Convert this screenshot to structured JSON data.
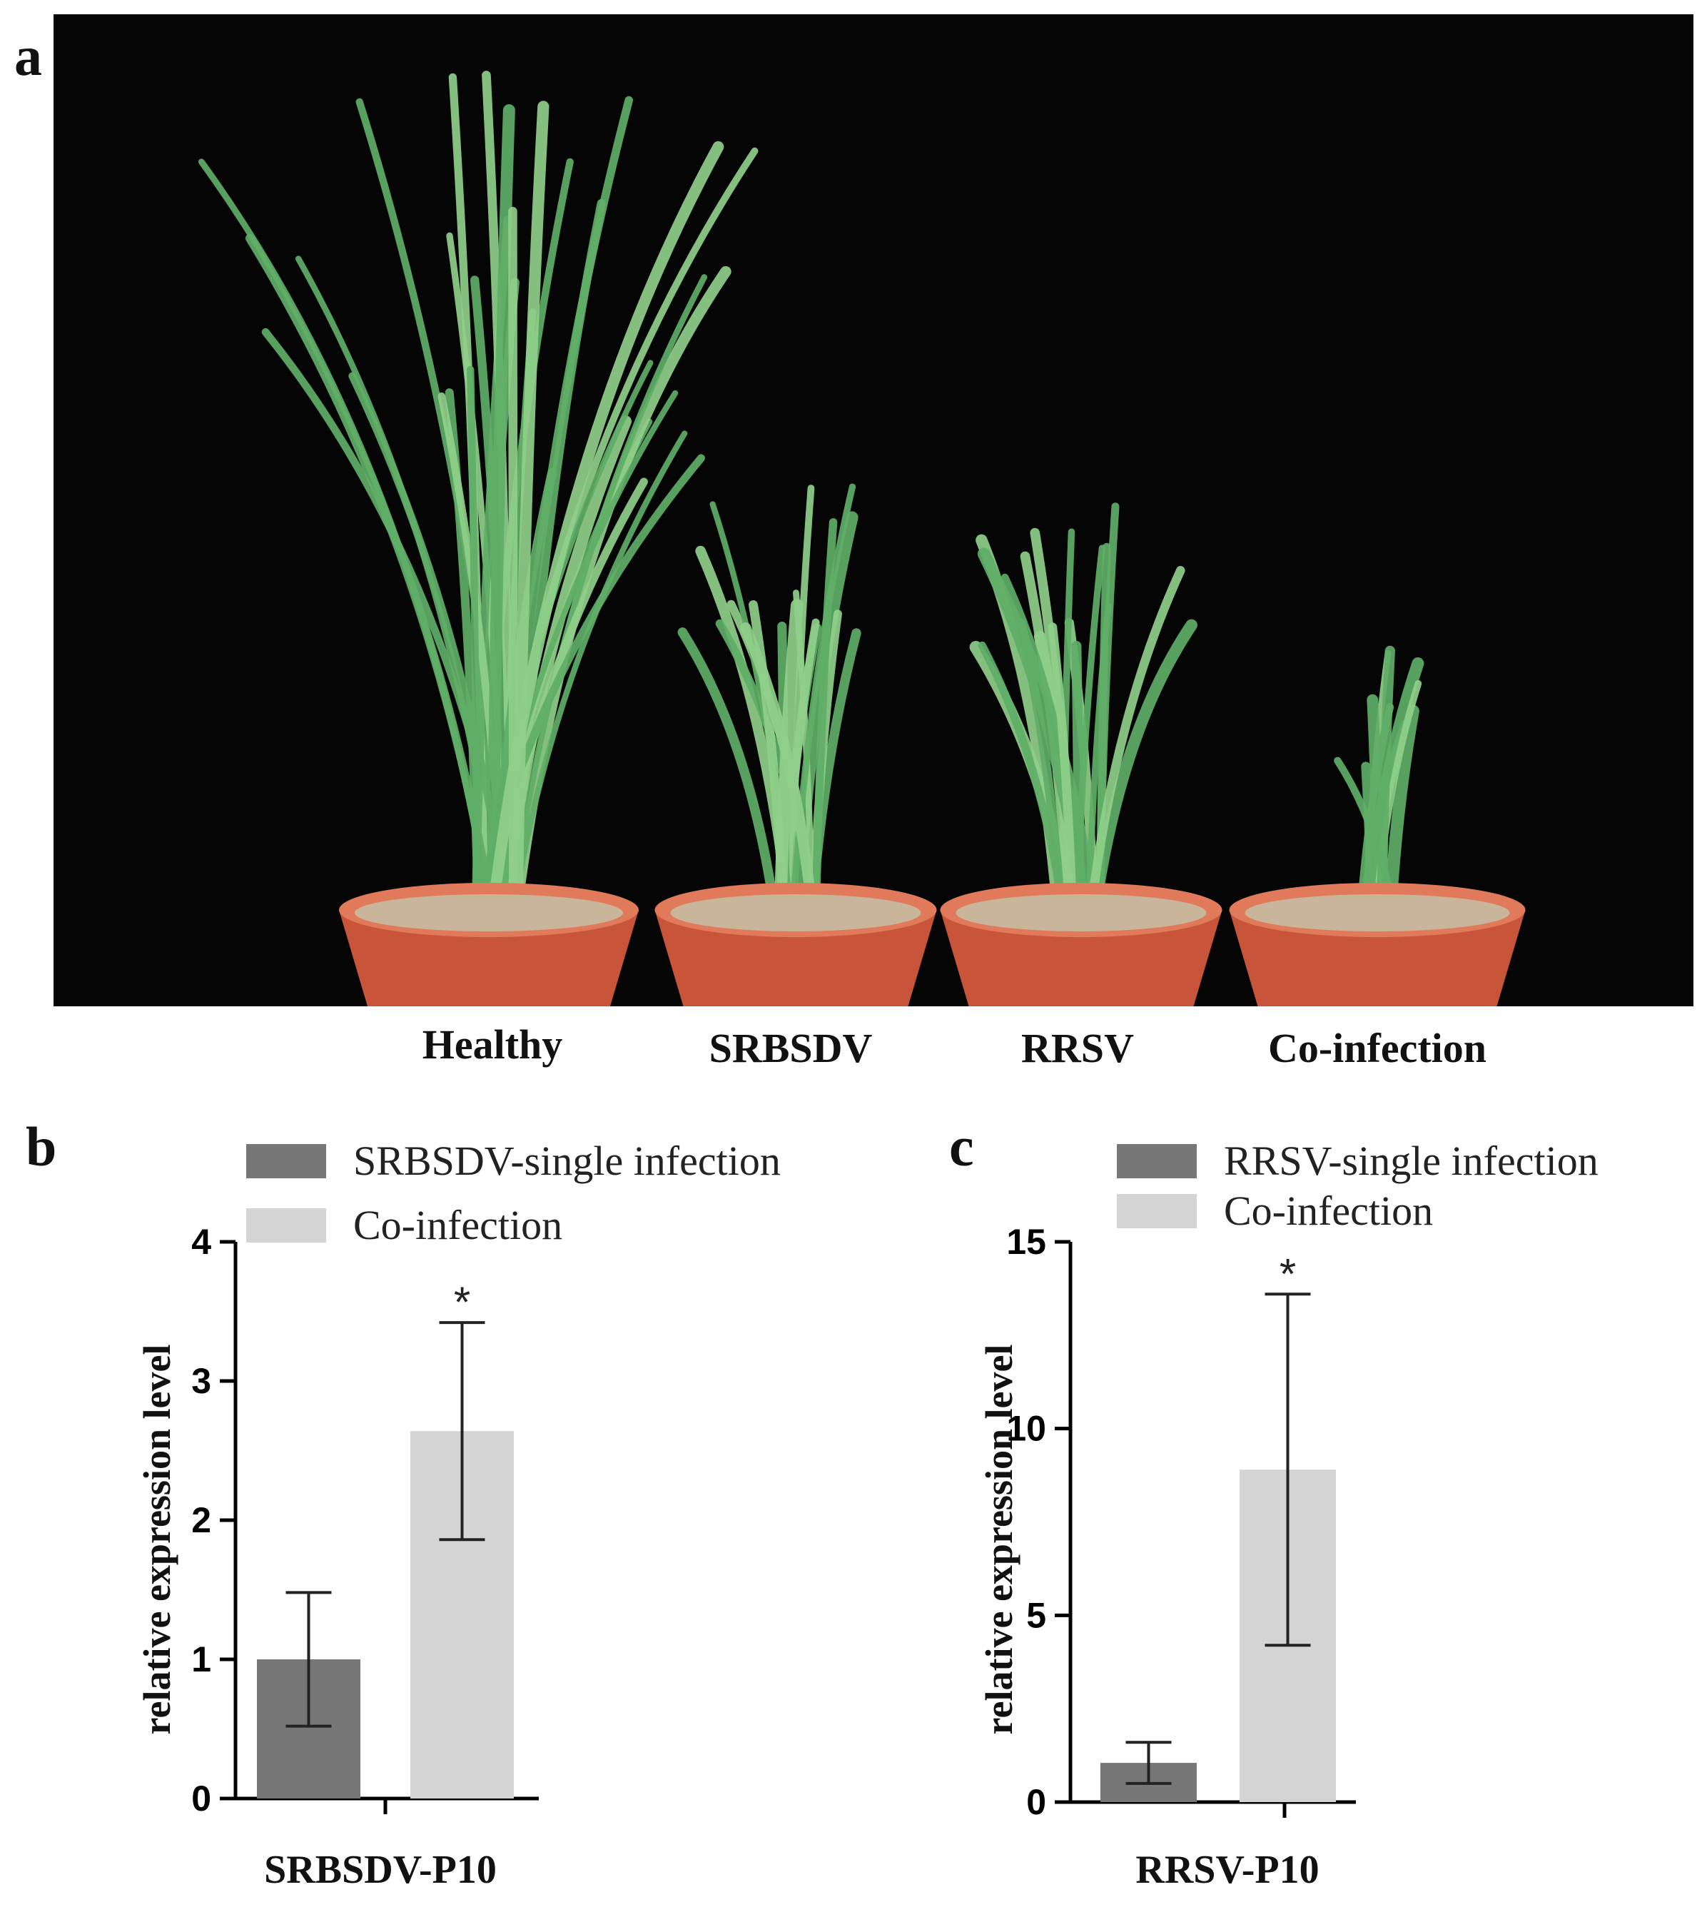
{
  "figure": {
    "panel_a": {
      "letter": "a",
      "labels": [
        "Healthy",
        "SRBSDV",
        "RRSV",
        "Co-infection"
      ],
      "colors": {
        "background": "#050505",
        "leaf": "#8fcf8a",
        "leaf_dark": "#5fae67",
        "pot": "#c8553a",
        "pot_rim": "#e07a5a",
        "soil": "#c9b59a"
      }
    },
    "panel_b": {
      "letter": "b"
    },
    "panel_c": {
      "letter": "c"
    }
  },
  "chart_data": [
    {
      "type": "bar",
      "title": "",
      "categories": [
        "SRBSDV-P10"
      ],
      "xlabel": "SRBSDV-P10",
      "ylabel": "relative expression level",
      "ylim": [
        0,
        4
      ],
      "yticks": [
        "0",
        "1",
        "2",
        "3",
        "4"
      ],
      "series": [
        {
          "name": "SRBSDV-single infection",
          "values": [
            1.0
          ],
          "error": [
            0.48
          ],
          "color": "#777777"
        },
        {
          "name": "Co-infection",
          "values": [
            2.64
          ],
          "error": [
            0.78
          ],
          "color": "#d4d4d4"
        }
      ],
      "annotations": [
        {
          "series": 1,
          "text": "*"
        }
      ],
      "legend": "top"
    },
    {
      "type": "bar",
      "title": "",
      "categories": [
        "RRSV-P10"
      ],
      "xlabel": "RRSV-P10",
      "ylabel": "relative expression level",
      "ylim": [
        0,
        15
      ],
      "yticks": [
        "0",
        "5",
        "10",
        "15"
      ],
      "series": [
        {
          "name": "RRSV-single infection",
          "values": [
            1.05
          ],
          "error": [
            0.55
          ],
          "color": "#777777"
        },
        {
          "name": "Co-infection",
          "values": [
            8.9
          ],
          "error": [
            4.7
          ],
          "color": "#d4d4d4"
        }
      ],
      "annotations": [
        {
          "series": 1,
          "text": "*"
        }
      ],
      "legend": "top"
    }
  ]
}
